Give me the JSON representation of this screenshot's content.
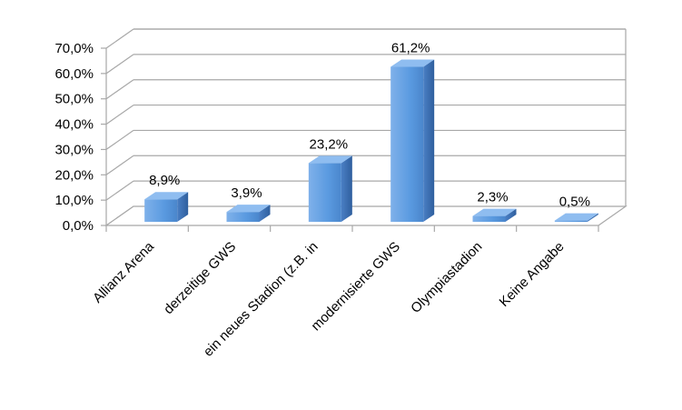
{
  "chart_data": {
    "type": "bar",
    "title": "",
    "xlabel": "",
    "ylabel": "",
    "categories": [
      "Allianz Arena",
      "derzeitige GWS",
      "ein neues Stadion (z.B. in",
      "modernisierte GWS",
      "Olympiastadion",
      "Keine Angabe"
    ],
    "values": [
      8.9,
      3.9,
      23.2,
      61.2,
      2.3,
      0.5
    ],
    "data_labels": [
      "8,9%",
      "3,9%",
      "23,2%",
      "61,2%",
      "2,3%",
      "0,5%"
    ],
    "ylim": [
      0,
      70
    ],
    "y_ticks": [
      0,
      10,
      20,
      30,
      40,
      50,
      60,
      70
    ],
    "y_tick_labels": [
      "0,0%",
      "10,0%",
      "20,0%",
      "30,0%",
      "40,0%",
      "50,0%",
      "60,0%",
      "70,0%"
    ],
    "grid": true,
    "legend": "none",
    "style": "3d-column",
    "colors": {
      "bar_front": "#5a9ae0",
      "bar_side": "#3a6fb3",
      "bar_top": "#8fbdf0",
      "grid": "#a8a8a8"
    }
  }
}
